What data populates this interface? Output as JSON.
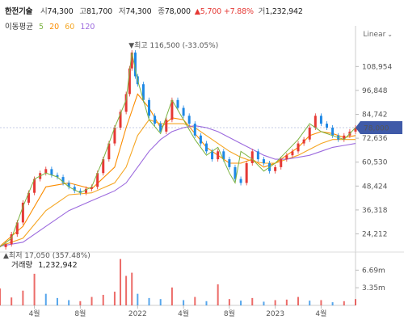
{
  "header": {
    "name": "한전기술",
    "open_label": "시",
    "open": "74,300",
    "high_label": "고",
    "high": "81,700",
    "low_label": "저",
    "low": "74,300",
    "close_label": "종",
    "close": "78,000",
    "change": "▲5,700",
    "change_pct": "+7.88%",
    "volume_label": "거",
    "volume": "1,232,942"
  },
  "moving_average": {
    "label": "이동평균",
    "periods": [
      {
        "value": "5",
        "color": "#7cb342"
      },
      {
        "value": "20",
        "color": "#fb8c00"
      },
      {
        "value": "60",
        "color": "#f5a623"
      },
      {
        "value": "120",
        "color": "#9c6ade"
      }
    ]
  },
  "scale_mode": "Linear",
  "price_tag": "78,000",
  "annotations": {
    "high": "▼최고 116,500 (-33.05%)",
    "low": "▲최저 17,050 (357.48%)"
  },
  "volume_panel": {
    "label": "거래량",
    "value": "1,232,942"
  },
  "colors": {
    "candle_up": "#e53935",
    "candle_down": "#1e88e5",
    "ma5": "#7cb342",
    "ma20": "#fb8c00",
    "ma60": "#f5a623",
    "ma120": "#9c6ade",
    "price_tag": "#3f5aa8"
  },
  "chart_data": {
    "type": "line",
    "title": "",
    "y_axis_ticks": [
      "108,954",
      "96,848",
      "84,742",
      "72,636",
      "60,530",
      "48,424",
      "36,318",
      "24,212"
    ],
    "y_tick_values": [
      108954,
      96848,
      84742,
      72636,
      60530,
      48424,
      36318,
      24212
    ],
    "ylim": [
      15000,
      123000
    ],
    "x_axis_ticks": [
      "4월",
      "8월",
      "2022",
      "4월",
      "8월",
      "2023",
      "4월"
    ],
    "x_tick_positions": [
      3,
      7,
      12,
      16,
      20,
      24,
      28
    ],
    "x_range": [
      0,
      31
    ],
    "volume_ticks": [
      "6.69m",
      "3.35m"
    ],
    "volume_tick_values": [
      6.69,
      3.35
    ],
    "volume_max": 9.2,
    "series": [
      {
        "name": "5",
        "x": [
          0,
          1,
          2,
          3,
          4,
          5,
          6,
          7,
          8,
          9,
          10,
          11,
          11.5,
          12,
          13,
          14,
          15,
          16,
          17,
          18,
          19,
          20,
          20.5,
          21,
          22,
          23,
          24,
          25,
          26,
          27,
          28,
          29,
          30,
          31
        ],
        "values": [
          17.5,
          22,
          38,
          52,
          55,
          53,
          48,
          45,
          48,
          62,
          78,
          92,
          116,
          102,
          82,
          75,
          92,
          82,
          72,
          64,
          68,
          55,
          50,
          66,
          62,
          56,
          60,
          66,
          72,
          80,
          76,
          74,
          72,
          78
        ]
      },
      {
        "name": "20",
        "x": [
          0,
          2,
          4,
          6,
          8,
          10,
          11,
          12,
          13,
          14,
          15,
          16,
          17,
          18,
          19,
          20,
          21,
          22,
          23,
          24,
          25,
          26,
          27,
          28,
          29,
          30,
          31
        ],
        "values": [
          18,
          28,
          48,
          50,
          47,
          58,
          78,
          95,
          88,
          78,
          83,
          82,
          75,
          68,
          64,
          60,
          60,
          62,
          58,
          60,
          64,
          68,
          74,
          76,
          75,
          73,
          74
        ]
      },
      {
        "name": "60",
        "x": [
          0,
          2,
          4,
          6,
          8,
          10,
          11,
          12,
          13,
          14,
          15,
          16,
          17,
          18,
          19,
          20,
          21,
          22,
          23,
          24,
          25,
          26,
          27,
          28,
          29,
          30,
          31
        ],
        "values": [
          18,
          22,
          36,
          44,
          45,
          50,
          58,
          74,
          82,
          80,
          80,
          80,
          78,
          74,
          70,
          66,
          63,
          61,
          60,
          60,
          62,
          64,
          67,
          70,
          72,
          72,
          72
        ]
      },
      {
        "name": "120",
        "x": [
          0,
          2,
          4,
          6,
          8,
          10,
          11,
          12,
          13,
          14,
          15,
          16,
          17,
          18,
          19,
          20,
          21,
          22,
          23,
          24,
          25,
          26,
          27,
          28,
          29,
          30,
          31
        ],
        "values": [
          18,
          20,
          28,
          36,
          41,
          46,
          50,
          58,
          66,
          72,
          76,
          78,
          79,
          78,
          76,
          73,
          70,
          67,
          64,
          62,
          62,
          63,
          64,
          66,
          68,
          69,
          70
        ]
      }
    ],
    "price_path": {
      "x": [
        0,
        0.5,
        1,
        1.5,
        2,
        2.5,
        3,
        3.5,
        4,
        4.5,
        5,
        5.5,
        6,
        6.5,
        7,
        7.5,
        8,
        8.5,
        9,
        9.5,
        10,
        10.5,
        11,
        11.3,
        11.5,
        11.8,
        12,
        12.5,
        13,
        13.5,
        14,
        14.5,
        15,
        15.5,
        16,
        16.5,
        17,
        17.5,
        18,
        18.5,
        19,
        19.5,
        20,
        20.5,
        21,
        21.5,
        22,
        22.5,
        23,
        23.5,
        24,
        24.5,
        25,
        25.5,
        26,
        26.5,
        27,
        27.5,
        28,
        28.5,
        29,
        29.5,
        30,
        30.5,
        31
      ],
      "values": [
        17.5,
        19,
        24,
        30,
        40,
        45,
        52,
        55,
        57,
        54,
        53,
        50,
        48,
        46,
        45,
        47,
        48,
        55,
        62,
        70,
        78,
        86,
        95,
        108,
        116,
        104,
        100,
        92,
        84,
        80,
        76,
        82,
        92,
        88,
        84,
        80,
        74,
        70,
        66,
        62,
        66,
        62,
        58,
        52,
        50,
        60,
        66,
        62,
        60,
        56,
        58,
        62,
        64,
        66,
        70,
        72,
        78,
        84,
        80,
        78,
        74,
        72,
        74,
        76,
        78
      ]
    },
    "volume": {
      "x": [
        0,
        1,
        2,
        3,
        4,
        5,
        6,
        7,
        8,
        9,
        10,
        10.5,
        11,
        11.5,
        12,
        13,
        14,
        15,
        16,
        17,
        18,
        19,
        20,
        21,
        22,
        23,
        24,
        25,
        26,
        27,
        28,
        29,
        30,
        31
      ],
      "values": [
        3.2,
        1.5,
        2.8,
        6.0,
        2.2,
        1.4,
        1.0,
        0.8,
        1.6,
        2.0,
        2.6,
        8.8,
        5.6,
        6.2,
        2.2,
        1.4,
        1.2,
        3.4,
        1.0,
        1.6,
        0.8,
        4.0,
        1.2,
        0.9,
        1.4,
        0.7,
        1.0,
        1.1,
        1.6,
        0.9,
        1.0,
        0.6,
        0.8,
        1.2
      ],
      "up": [
        1,
        1,
        1,
        1,
        0,
        0,
        0,
        1,
        1,
        1,
        1,
        1,
        1,
        1,
        0,
        0,
        0,
        1,
        0,
        1,
        0,
        1,
        1,
        0,
        1,
        0,
        1,
        1,
        1,
        0,
        1,
        0,
        1,
        1
      ]
    }
  }
}
